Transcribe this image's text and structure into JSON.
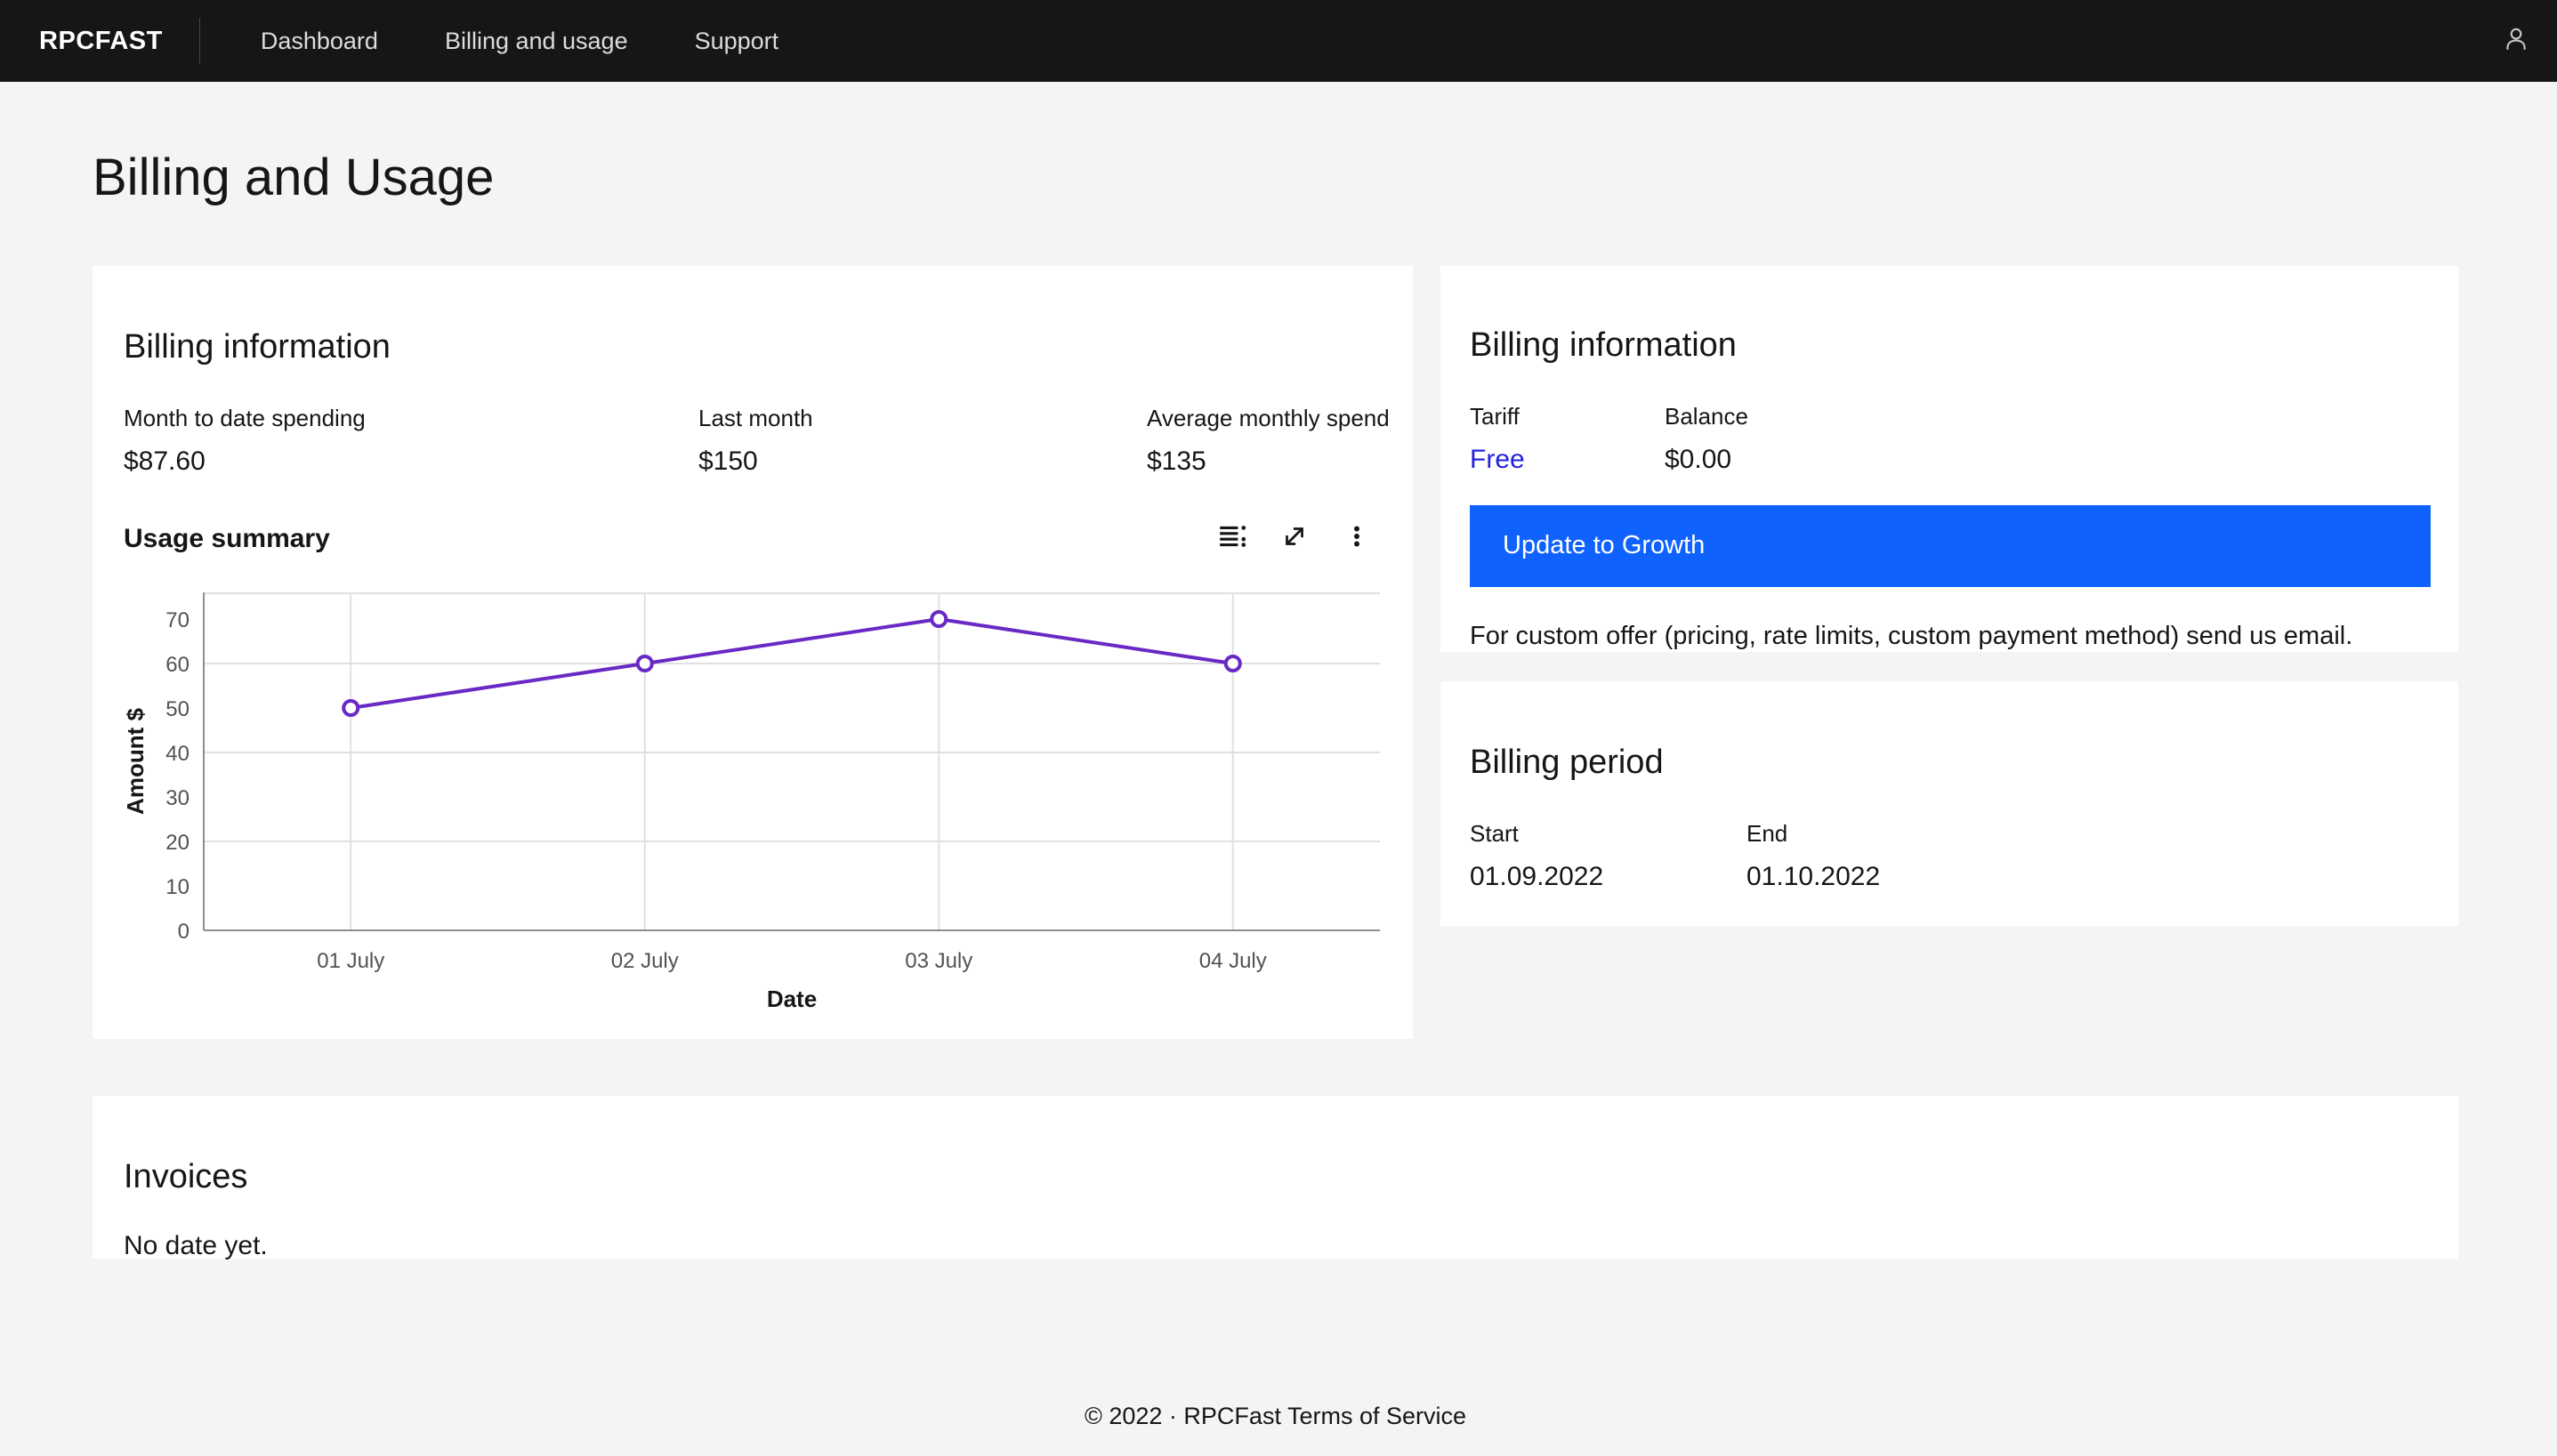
{
  "header": {
    "logo": "RPCFAST",
    "nav": [
      {
        "label": "Dashboard"
      },
      {
        "label": "Billing and usage"
      },
      {
        "label": "Support"
      }
    ]
  },
  "page": {
    "title": "Billing and Usage"
  },
  "billing_card": {
    "title": "Billing information",
    "stats": [
      {
        "label": "Month to date spending",
        "value": "$87.60"
      },
      {
        "label": "Last month",
        "value": "$150"
      },
      {
        "label": "Average monthly spend",
        "value": "$135"
      }
    ],
    "usage_title": "Usage summary",
    "toolbar_icons": [
      "data-table-icon",
      "expand-icon",
      "overflow-menu-icon"
    ]
  },
  "chart_data": {
    "type": "line",
    "title": "Usage summary",
    "x": [
      "01 July",
      "02 July",
      "03 July",
      "04 July"
    ],
    "values": [
      50,
      60,
      70,
      60
    ],
    "xlabel": "Date",
    "ylabel": "Amount $",
    "ylim": [
      0,
      76
    ],
    "yticks": [
      0,
      10,
      20,
      30,
      40,
      50,
      60,
      70
    ],
    "grid": true,
    "legend": "none",
    "line_color": "#6929c4",
    "point_style": "open-circle"
  },
  "account_card": {
    "title": "Billing information",
    "fields": [
      {
        "label": "Tariff",
        "value": "Free"
      },
      {
        "label": "Balance",
        "value": "$0.00"
      }
    ],
    "button_label": "Update to Growth",
    "note": "For custom offer (pricing, rate limits, custom payment method) send us email."
  },
  "period_card": {
    "title": "Billing period",
    "fields": [
      {
        "label": "Start",
        "value": "01.09.2022"
      },
      {
        "label": "End",
        "value": "01.10.2022"
      }
    ]
  },
  "invoices_card": {
    "title": "Invoices",
    "empty": "No date yet."
  },
  "footer": {
    "copyright": "© 2022 · RPCFast",
    "link": "Terms of Service"
  },
  "colors": {
    "background": "#f4f4f4",
    "header_bg": "#161616",
    "card_bg": "#ffffff",
    "button_blue": "#0f62fe",
    "link_blue": "#2222e0",
    "chart_purple": "#6929c4",
    "gridline": "#e0e0e0",
    "axis_gray": "#8d8d8d",
    "tick_gray": "#525252"
  }
}
